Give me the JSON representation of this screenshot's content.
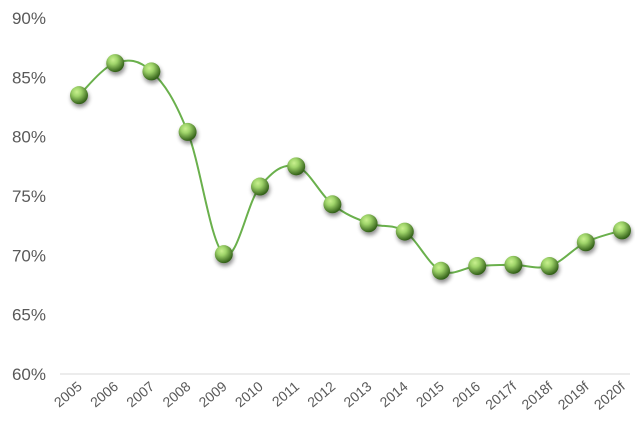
{
  "chart_data": {
    "type": "line",
    "title": "",
    "xlabel": "",
    "ylabel": "",
    "categories": [
      "2005",
      "2006",
      "2007",
      "2008",
      "2009",
      "2010",
      "2011",
      "2012",
      "2013",
      "2014",
      "2015",
      "2016",
      "2017f",
      "2018f",
      "2019f",
      "2020f"
    ],
    "series": [
      {
        "values": [
          83.5,
          86.2,
          85.5,
          80.4,
          70.1,
          75.8,
          77.5,
          74.3,
          72.7,
          72.0,
          68.7,
          69.1,
          69.2,
          69.1,
          71.1,
          72.1
        ]
      }
    ],
    "ylim": [
      60,
      90
    ],
    "yticks": [
      60,
      65,
      70,
      75,
      80,
      85,
      90
    ],
    "ytick_labels": [
      "60%",
      "65%",
      "70%",
      "75%",
      "80%",
      "85%",
      "90%"
    ],
    "grid": false,
    "legend": "none",
    "smooth": true,
    "colors": {
      "line": "#6ab04c",
      "marker_light": "#9fd46a",
      "marker_mid": "#4f8f2a",
      "marker_dark": "#2d5a14",
      "axis": "#d9d9d9",
      "tick_text": "#595959"
    }
  }
}
